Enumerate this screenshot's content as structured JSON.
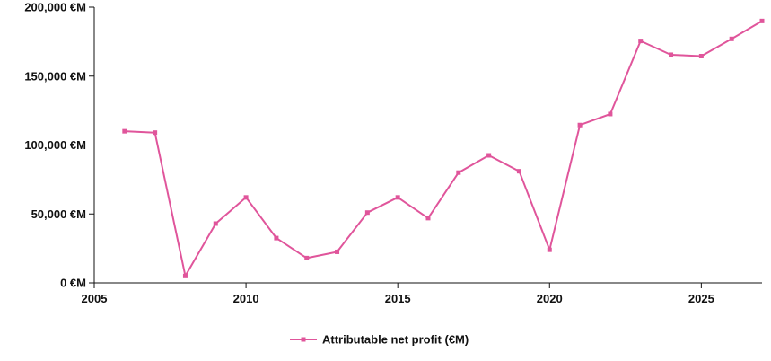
{
  "chart_data": {
    "type": "line",
    "title": "",
    "xlabel": "",
    "ylabel": "",
    "xlim": [
      2005,
      2027
    ],
    "ylim": [
      0,
      200000
    ],
    "x_ticks": [
      2005,
      2010,
      2015,
      2020,
      2025
    ],
    "x_tick_labels": [
      "2005",
      "2010",
      "2015",
      "2020",
      "2025"
    ],
    "y_ticks": [
      0,
      50000,
      100000,
      150000,
      200000
    ],
    "y_tick_labels": [
      "0 €M",
      "50,000 €M",
      "100,000 €M",
      "150,000 €M",
      "200,000 €M"
    ],
    "grid": false,
    "legend_position": "bottom-center",
    "series": [
      {
        "name": "Attributable net profit (€M)",
        "color": "#e0559b",
        "marker": "square",
        "x": [
          2006,
          2007,
          2008,
          2009,
          2010,
          2011,
          2012,
          2013,
          2014,
          2015,
          2016,
          2017,
          2018,
          2019,
          2020,
          2021,
          2022,
          2023,
          2024,
          2025,
          2026,
          2027
        ],
        "y": [
          110000,
          109000,
          5000,
          43000,
          62000,
          32500,
          18000,
          22500,
          51000,
          62000,
          47000,
          80000,
          92500,
          81000,
          24000,
          114500,
          122500,
          175500,
          165500,
          164500,
          177000,
          190000
        ]
      }
    ]
  }
}
